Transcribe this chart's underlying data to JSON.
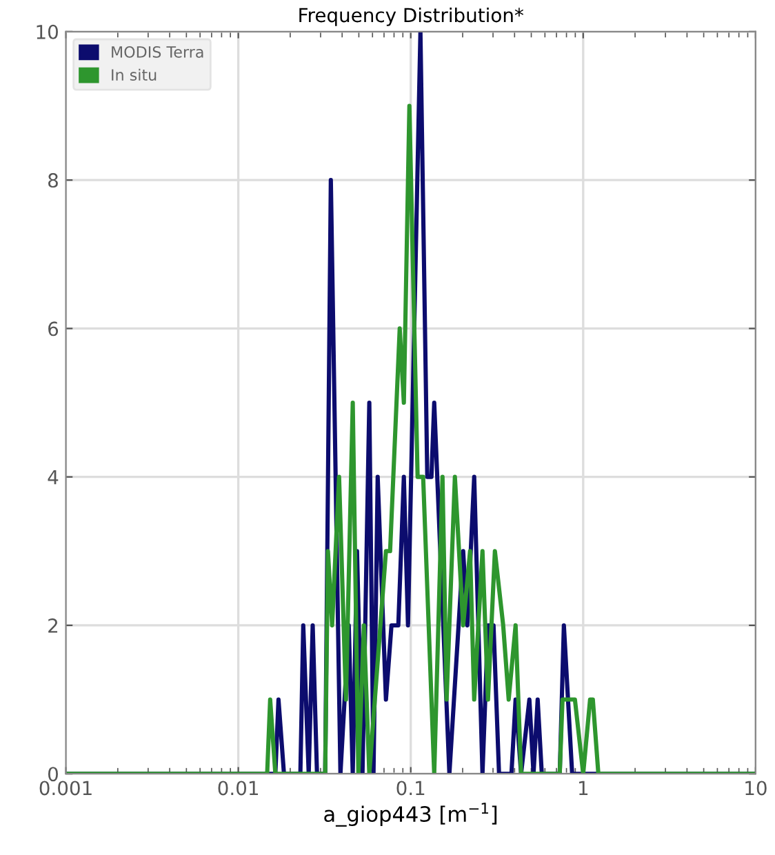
{
  "chart_data": {
    "type": "line",
    "title": "Frequency Distribution*",
    "xlabel": "a_giop443 [m$^{−1}$]",
    "log": "x",
    "xlim": [
      0.001,
      10
    ],
    "xticks": [
      0.001,
      0.01,
      0.1,
      1,
      10
    ],
    "ylim": [
      0,
      10
    ],
    "yticks": [
      0,
      2,
      4,
      6,
      8,
      10
    ],
    "grid": true,
    "legend": "top left",
    "series": [
      {
        "name": "MODIS Terra",
        "color": "#0c0c6e",
        "x": [
          0.001,
          0.0164,
          0.0171,
          0.0184,
          0.0229,
          0.0238,
          0.0256,
          0.027,
          0.0286,
          0.0319,
          0.0344,
          0.0391,
          0.0437,
          0.0461,
          0.0488,
          0.0525,
          0.0575,
          0.0608,
          0.0643,
          0.0718,
          0.0773,
          0.0847,
          0.0912,
          0.0964,
          0.1138,
          0.1247,
          0.1318,
          0.1368,
          0.1675,
          0.2014,
          0.2128,
          0.2333,
          0.2606,
          0.2805,
          0.302,
          0.3251,
          0.3837,
          0.4055,
          0.4365,
          0.4875,
          0.5152,
          0.5445,
          0.5754,
          0.7311,
          0.7727,
          0.863,
          10
        ],
        "values": [
          0,
          0,
          1,
          0,
          0,
          2,
          0,
          2,
          0,
          0,
          8,
          0,
          2,
          0,
          3,
          0,
          5,
          0,
          4,
          1,
          2,
          2,
          4,
          2,
          10,
          4,
          4,
          5,
          0,
          3,
          2,
          4,
          0,
          2,
          2,
          0,
          0,
          1,
          0,
          1,
          0,
          1,
          0,
          0,
          2,
          0,
          0
        ]
      },
      {
        "name": "In situ",
        "color": "#2e962e",
        "x": [
          0.001,
          0.0147,
          0.0153,
          0.0164,
          0.0319,
          0.0331,
          0.035,
          0.0384,
          0.0421,
          0.0461,
          0.0497,
          0.0535,
          0.0575,
          0.0718,
          0.0759,
          0.0863,
          0.0912,
          0.0982,
          0.1096,
          0.118,
          0.1368,
          0.1528,
          0.1614,
          0.1803,
          0.2014,
          0.2208,
          0.2333,
          0.2606,
          0.2805,
          0.3076,
          0.3436,
          0.3698,
          0.4055,
          0.4365,
          0.7311,
          0.7586,
          0.8954,
          1.0,
          1.0965,
          1.1376,
          1.2246,
          10
        ],
        "values": [
          0,
          0,
          1,
          0,
          0,
          3,
          2,
          4,
          1,
          5,
          0,
          2,
          0,
          3,
          3,
          6,
          5,
          9,
          4,
          4,
          0,
          4,
          1,
          4,
          2,
          3,
          1,
          3,
          1,
          3,
          2,
          1,
          2,
          0,
          0,
          1,
          1,
          0,
          1,
          1,
          0,
          0
        ]
      }
    ]
  }
}
